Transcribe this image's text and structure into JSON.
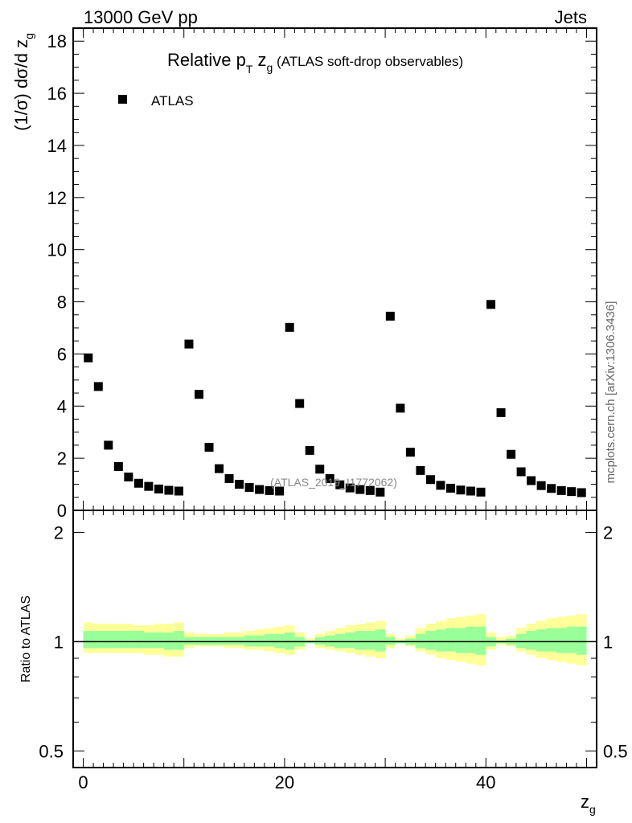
{
  "header": {
    "left": "13000 GeV pp",
    "right": "Jets",
    "side_label": "mcplots.cern.ch [arXiv:1306.3436]"
  },
  "chart_data": [
    {
      "type": "scatter",
      "title_main": "Relative p",
      "title_sub1": "T",
      "title_mid": " z",
      "title_sub2": "g",
      "title_tail": " (ATLAS soft-drop observables)",
      "ylabel_main": "(1/σ) dσ/d z",
      "ylabel_sub": "g",
      "watermark": "(ATLAS_2019_I1772062)",
      "xlim": [
        -1,
        51
      ],
      "ylim": [
        0,
        18.5
      ],
      "yticks": [
        0,
        2,
        4,
        6,
        8,
        10,
        12,
        14,
        16,
        18
      ],
      "ytick_labels": [
        "0",
        "2",
        "4",
        "6",
        "8",
        "10",
        "12",
        "14",
        "16",
        "18"
      ],
      "grid": false,
      "legend_position": "top-left",
      "series": [
        {
          "name": "ATLAS",
          "color": "#000000",
          "marker": "square",
          "x": [
            0.5,
            1.5,
            2.5,
            3.5,
            4.5,
            5.5,
            6.5,
            7.5,
            8.5,
            9.5,
            10.5,
            11.5,
            12.5,
            13.5,
            14.5,
            15.5,
            16.5,
            17.5,
            18.5,
            19.5,
            20.5,
            21.5,
            22.5,
            23.5,
            24.5,
            25.5,
            26.5,
            27.5,
            28.5,
            29.5,
            30.5,
            31.5,
            32.5,
            33.5,
            34.5,
            35.5,
            36.5,
            37.5,
            38.5,
            39.5,
            40.5,
            41.5,
            42.5,
            43.5,
            44.5,
            45.5,
            46.5,
            47.5,
            48.5,
            49.5
          ],
          "y": [
            5.85,
            4.75,
            2.5,
            1.68,
            1.28,
            1.04,
            0.92,
            0.82,
            0.77,
            0.74,
            6.38,
            4.45,
            2.42,
            1.6,
            1.22,
            1.0,
            0.88,
            0.8,
            0.76,
            0.74,
            7.02,
            4.1,
            2.3,
            1.58,
            1.22,
            0.98,
            0.86,
            0.8,
            0.76,
            0.7,
            7.45,
            3.92,
            2.23,
            1.53,
            1.18,
            0.96,
            0.85,
            0.78,
            0.74,
            0.7,
            7.9,
            3.75,
            2.15,
            1.48,
            1.14,
            0.95,
            0.84,
            0.76,
            0.72,
            0.68
          ]
        }
      ]
    },
    {
      "type": "area",
      "ylabel": "Ratio to ATLAS",
      "xlabel_main": "z",
      "xlabel_sub": "g",
      "xlim": [
        -1,
        51
      ],
      "ylim": [
        0.45,
        2.3
      ],
      "log_y": true,
      "xticks": [
        0,
        20,
        40
      ],
      "xtick_labels": [
        "0",
        "20",
        "40"
      ],
      "yticks": [
        0.5,
        1,
        2
      ],
      "ytick_labels": [
        "0.5",
        "1",
        "2"
      ],
      "reference_line": 1,
      "bands": [
        {
          "kind": "total uncertainty",
          "color": "#ffff99",
          "bin_width": 1,
          "bin_starts": [
            0,
            1,
            2,
            3,
            4,
            5,
            6,
            7,
            8,
            9,
            10,
            11,
            12,
            13,
            14,
            15,
            16,
            17,
            18,
            19,
            20,
            21,
            22,
            23,
            24,
            25,
            26,
            27,
            28,
            29,
            30,
            31,
            32,
            33,
            34,
            35,
            36,
            37,
            38,
            39,
            40,
            41,
            42,
            43,
            44,
            45,
            46,
            47,
            48,
            49
          ],
          "upper": [
            1.13,
            1.12,
            1.12,
            1.12,
            1.12,
            1.11,
            1.11,
            1.12,
            1.12,
            1.13,
            1.06,
            1.05,
            1.05,
            1.05,
            1.06,
            1.06,
            1.07,
            1.08,
            1.09,
            1.1,
            1.11,
            1.06,
            1.02,
            1.05,
            1.07,
            1.09,
            1.11,
            1.12,
            1.13,
            1.14,
            1.05,
            1.02,
            1.04,
            1.09,
            1.12,
            1.14,
            1.16,
            1.17,
            1.18,
            1.19,
            1.06,
            1.03,
            1.04,
            1.09,
            1.12,
            1.14,
            1.16,
            1.17,
            1.18,
            1.19
          ],
          "lower": [
            0.93,
            0.93,
            0.93,
            0.93,
            0.93,
            0.93,
            0.92,
            0.92,
            0.91,
            0.91,
            0.96,
            0.97,
            0.97,
            0.97,
            0.96,
            0.96,
            0.95,
            0.95,
            0.94,
            0.93,
            0.92,
            0.95,
            0.99,
            0.96,
            0.95,
            0.94,
            0.93,
            0.92,
            0.91,
            0.9,
            0.96,
            0.99,
            0.97,
            0.94,
            0.92,
            0.9,
            0.89,
            0.88,
            0.87,
            0.86,
            0.95,
            0.98,
            0.97,
            0.94,
            0.92,
            0.9,
            0.89,
            0.88,
            0.87,
            0.86
          ]
        },
        {
          "kind": "statistical uncertainty",
          "color": "#99ff99",
          "bin_width": 1,
          "bin_starts": [
            0,
            1,
            2,
            3,
            4,
            5,
            6,
            7,
            8,
            9,
            10,
            11,
            12,
            13,
            14,
            15,
            16,
            17,
            18,
            19,
            20,
            21,
            22,
            23,
            24,
            25,
            26,
            27,
            28,
            29,
            30,
            31,
            32,
            33,
            34,
            35,
            36,
            37,
            38,
            39,
            40,
            41,
            42,
            43,
            44,
            45,
            46,
            47,
            48,
            49
          ],
          "upper": [
            1.07,
            1.07,
            1.07,
            1.07,
            1.07,
            1.07,
            1.06,
            1.06,
            1.06,
            1.07,
            1.03,
            1.03,
            1.03,
            1.03,
            1.03,
            1.03,
            1.04,
            1.04,
            1.05,
            1.05,
            1.06,
            1.03,
            1.01,
            1.03,
            1.04,
            1.05,
            1.06,
            1.07,
            1.07,
            1.08,
            1.03,
            1.01,
            1.02,
            1.05,
            1.07,
            1.08,
            1.09,
            1.09,
            1.1,
            1.1,
            1.03,
            1.01,
            1.02,
            1.05,
            1.07,
            1.08,
            1.09,
            1.09,
            1.1,
            1.1
          ],
          "lower": [
            0.96,
            0.96,
            0.96,
            0.96,
            0.96,
            0.96,
            0.96,
            0.96,
            0.95,
            0.95,
            0.98,
            0.98,
            0.98,
            0.98,
            0.98,
            0.98,
            0.97,
            0.97,
            0.97,
            0.96,
            0.95,
            0.97,
            0.99,
            0.98,
            0.97,
            0.96,
            0.96,
            0.95,
            0.95,
            0.94,
            0.98,
            0.99,
            0.98,
            0.96,
            0.95,
            0.94,
            0.94,
            0.93,
            0.93,
            0.92,
            0.97,
            0.99,
            0.98,
            0.96,
            0.95,
            0.94,
            0.94,
            0.93,
            0.93,
            0.92
          ]
        }
      ]
    }
  ]
}
